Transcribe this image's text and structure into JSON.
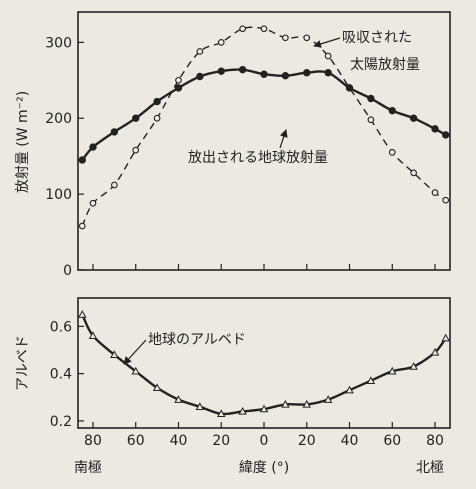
{
  "chart_data": [
    {
      "type": "line",
      "ylabel": "放射量 (W m⁻²)",
      "ylim": [
        0,
        340
      ],
      "yticks": [
        0,
        100,
        200,
        300
      ],
      "x_domain": [
        -87,
        87
      ],
      "series": [
        {
          "name": "吸収された太陽放射量",
          "style": "dashed-open-circles",
          "x": [
            -85,
            -80,
            -70,
            -60,
            -50,
            -40,
            -30,
            -20,
            -10,
            0,
            10,
            20,
            30,
            40,
            50,
            60,
            70,
            80,
            85
          ],
          "values": [
            58,
            88,
            112,
            158,
            200,
            250,
            288,
            300,
            318,
            318,
            306,
            306,
            282,
            240,
            198,
            155,
            128,
            102,
            92
          ]
        },
        {
          "name": "放出される地球放射量",
          "style": "solid-filled-dots",
          "x": [
            -85,
            -80,
            -70,
            -60,
            -50,
            -40,
            -30,
            -20,
            -10,
            0,
            10,
            20,
            30,
            40,
            50,
            60,
            70,
            80,
            85
          ],
          "values": [
            145,
            162,
            182,
            200,
            222,
            240,
            255,
            262,
            264,
            258,
            256,
            260,
            260,
            240,
            226,
            210,
            200,
            186,
            178
          ]
        }
      ],
      "annotations": [
        {
          "text_lines": [
            "吸収された",
            "太陽放射量"
          ],
          "points_to": "吸収された太陽放射量"
        },
        {
          "text_lines": [
            "放出される地球放射量"
          ],
          "points_to": "放出される地球放射量"
        }
      ]
    },
    {
      "type": "line",
      "ylabel": "アルベド",
      "ylim": [
        0.17,
        0.72
      ],
      "yticks": [
        0.2,
        0.4,
        0.6
      ],
      "x_domain": [
        -87,
        87
      ],
      "xtick_labels": [
        {
          "x": -80,
          "label": "80"
        },
        {
          "x": -60,
          "label": "60"
        },
        {
          "x": -40,
          "label": "40"
        },
        {
          "x": -20,
          "label": "20"
        },
        {
          "x": 0,
          "label": "0"
        },
        {
          "x": 20,
          "label": "20"
        },
        {
          "x": 40,
          "label": "40"
        },
        {
          "x": 60,
          "label": "60"
        },
        {
          "x": 80,
          "label": "80"
        }
      ],
      "xlabel": "緯度 (°)",
      "x_end_labels": {
        "left": "南極",
        "right": "北極"
      },
      "series": [
        {
          "name": "地球のアルベド",
          "style": "solid-open-triangles",
          "x": [
            -85,
            -80,
            -70,
            -60,
            -50,
            -40,
            -30,
            -20,
            -10,
            0,
            10,
            20,
            30,
            40,
            50,
            60,
            70,
            80,
            85
          ],
          "values": [
            0.65,
            0.56,
            0.48,
            0.41,
            0.34,
            0.29,
            0.26,
            0.23,
            0.24,
            0.25,
            0.27,
            0.27,
            0.29,
            0.33,
            0.37,
            0.41,
            0.43,
            0.49,
            0.55
          ]
        }
      ],
      "annotations": [
        {
          "text_lines": [
            "地球のアルベド"
          ],
          "points_to": "地球のアルベド"
        }
      ]
    }
  ]
}
